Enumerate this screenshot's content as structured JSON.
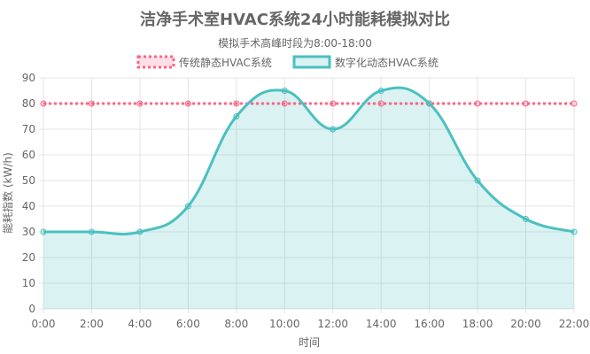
{
  "chart_data": {
    "type": "line",
    "title": "洁净手术室HVAC系统24小时能耗模拟对比",
    "subtitle": "模拟手术高峰时段为8:00-18:00",
    "xlabel": "时间",
    "ylabel": "能耗指数 (kW/h)",
    "categories": [
      "0:00",
      "2:00",
      "4:00",
      "6:00",
      "8:00",
      "10:00",
      "12:00",
      "14:00",
      "16:00",
      "18:00",
      "20:00",
      "22:00"
    ],
    "ylim": [
      0,
      90
    ],
    "yticks": [
      0,
      10,
      20,
      30,
      40,
      50,
      60,
      70,
      80,
      90
    ],
    "grid": true,
    "legend_position": "top",
    "series": [
      {
        "name": "传统静态HVAC系统",
        "values": [
          80,
          80,
          80,
          80,
          80,
          80,
          80,
          80,
          80,
          80,
          80,
          80
        ],
        "color": "#ff6384",
        "style": "dotted",
        "fill": false
      },
      {
        "name": "数字化动态HVAC系统",
        "values": [
          30,
          30,
          30,
          40,
          75,
          85,
          70,
          85,
          80,
          50,
          35,
          30
        ],
        "color": "#4bc0c0",
        "style": "solid",
        "fill": true
      }
    ]
  }
}
